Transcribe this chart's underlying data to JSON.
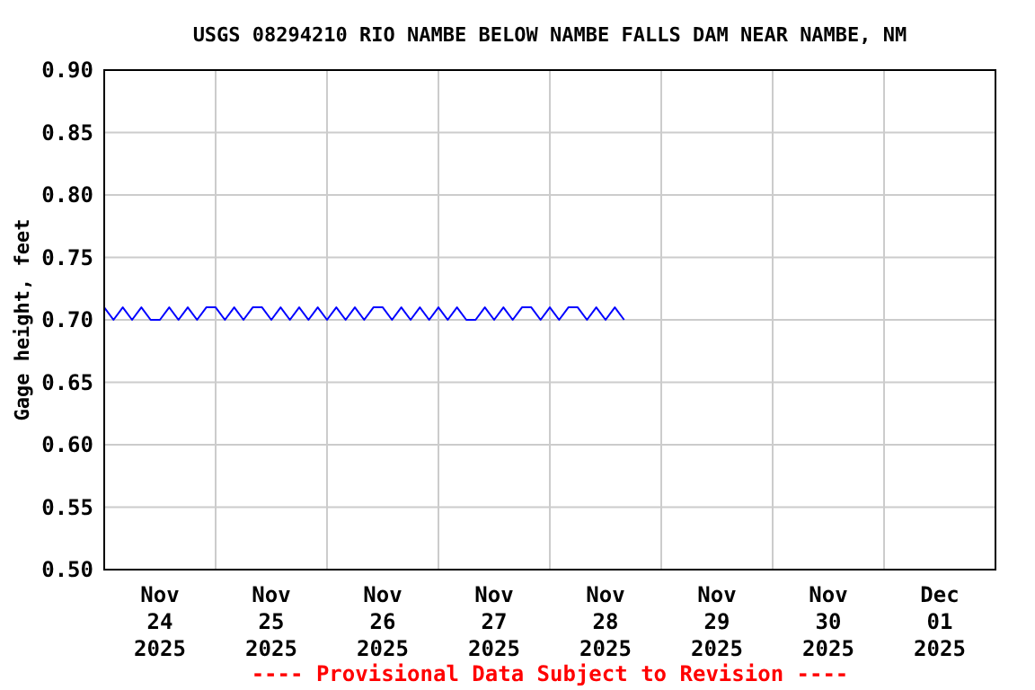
{
  "chart_data": {
    "type": "line",
    "title": "USGS 08294210 RIO NAMBE BELOW NAMBE FALLS DAM NEAR NAMBE, NM",
    "ylabel": "Gage height, feet",
    "annotations": [
      "---- Provisional Data Subject to Revision ----"
    ],
    "xlim": [
      "2025-11-24T00:00",
      "2025-12-02T00:00"
    ],
    "xticks": [
      {
        "value": "2025-11-24T12:00",
        "label": "Nov\n24\n2025"
      },
      {
        "value": "2025-11-25T12:00",
        "label": "Nov\n25\n2025"
      },
      {
        "value": "2025-11-26T12:00",
        "label": "Nov\n26\n2025"
      },
      {
        "value": "2025-11-27T12:00",
        "label": "Nov\n27\n2025"
      },
      {
        "value": "2025-11-28T12:00",
        "label": "Nov\n28\n2025"
      },
      {
        "value": "2025-11-29T12:00",
        "label": "Nov\n29\n2025"
      },
      {
        "value": "2025-11-30T12:00",
        "label": "Nov\n30\n2025"
      },
      {
        "value": "2025-12-01T12:00",
        "label": "Dec\n01\n2025"
      },
      {
        "value": "2025-11-25T00:00",
        "label": null
      },
      {
        "value": "2025-11-26T00:00",
        "label": null
      },
      {
        "value": "2025-11-27T00:00",
        "label": null
      },
      {
        "value": "2025-11-28T00:00",
        "label": null
      },
      {
        "value": "2025-11-29T00:00",
        "label": null
      },
      {
        "value": "2025-11-30T00:00",
        "label": null
      },
      {
        "value": "2025-12-01T00:00",
        "label": null
      }
    ],
    "ylim": [
      0.5,
      0.9
    ],
    "yticks": [
      {
        "value": 0.5,
        "label": "0.50"
      },
      {
        "value": 0.55,
        "label": "0.55"
      },
      {
        "value": 0.6,
        "label": "0.60"
      },
      {
        "value": 0.65,
        "label": "0.65"
      },
      {
        "value": 0.7,
        "label": "0.70"
      },
      {
        "value": 0.75,
        "label": "0.75"
      },
      {
        "value": 0.8,
        "label": "0.80"
      },
      {
        "value": 0.85,
        "label": "0.85"
      },
      {
        "value": 0.9,
        "label": "0.90"
      }
    ],
    "grid": true,
    "line_style": "solid",
    "x": [
      "2025-11-24T00:00",
      "2025-11-24T02:00",
      "2025-11-24T04:00",
      "2025-11-24T06:00",
      "2025-11-24T08:00",
      "2025-11-24T10:00",
      "2025-11-24T12:00",
      "2025-11-24T14:00",
      "2025-11-24T16:00",
      "2025-11-24T18:00",
      "2025-11-24T20:00",
      "2025-11-24T22:00",
      "2025-11-25T00:00",
      "2025-11-25T02:00",
      "2025-11-25T04:00",
      "2025-11-25T06:00",
      "2025-11-25T08:00",
      "2025-11-25T10:00",
      "2025-11-25T12:00",
      "2025-11-25T14:00",
      "2025-11-25T16:00",
      "2025-11-25T18:00",
      "2025-11-25T20:00",
      "2025-11-25T22:00",
      "2025-11-26T00:00",
      "2025-11-26T02:00",
      "2025-11-26T04:00",
      "2025-11-26T06:00",
      "2025-11-26T08:00",
      "2025-11-26T10:00",
      "2025-11-26T12:00",
      "2025-11-26T14:00",
      "2025-11-26T16:00",
      "2025-11-26T18:00",
      "2025-11-26T20:00",
      "2025-11-26T22:00",
      "2025-11-27T00:00",
      "2025-11-27T02:00",
      "2025-11-27T04:00",
      "2025-11-27T06:00",
      "2025-11-27T08:00",
      "2025-11-27T10:00",
      "2025-11-27T12:00",
      "2025-11-27T14:00",
      "2025-11-27T16:00",
      "2025-11-27T18:00",
      "2025-11-27T20:00",
      "2025-11-27T22:00",
      "2025-11-28T00:00",
      "2025-11-28T02:00",
      "2025-11-28T04:00",
      "2025-11-28T06:00",
      "2025-11-28T08:00",
      "2025-11-28T10:00",
      "2025-11-28T12:00",
      "2025-11-28T14:00",
      "2025-11-28T16:00"
    ],
    "series": [
      {
        "color": "#0000ff",
        "values": [
          0.71,
          0.7,
          0.71,
          0.7,
          0.71,
          0.7,
          0.7,
          0.71,
          0.7,
          0.71,
          0.7,
          0.71,
          0.71,
          0.7,
          0.71,
          0.7,
          0.71,
          0.71,
          0.7,
          0.71,
          0.7,
          0.71,
          0.7,
          0.71,
          0.7,
          0.71,
          0.7,
          0.71,
          0.7,
          0.71,
          0.71,
          0.7,
          0.71,
          0.7,
          0.71,
          0.7,
          0.71,
          0.7,
          0.71,
          0.7,
          0.7,
          0.71,
          0.7,
          0.71,
          0.7,
          0.71,
          0.71,
          0.7,
          0.71,
          0.7,
          0.71,
          0.71,
          0.7,
          0.71,
          0.7,
          0.71,
          0.7
        ]
      }
    ]
  }
}
